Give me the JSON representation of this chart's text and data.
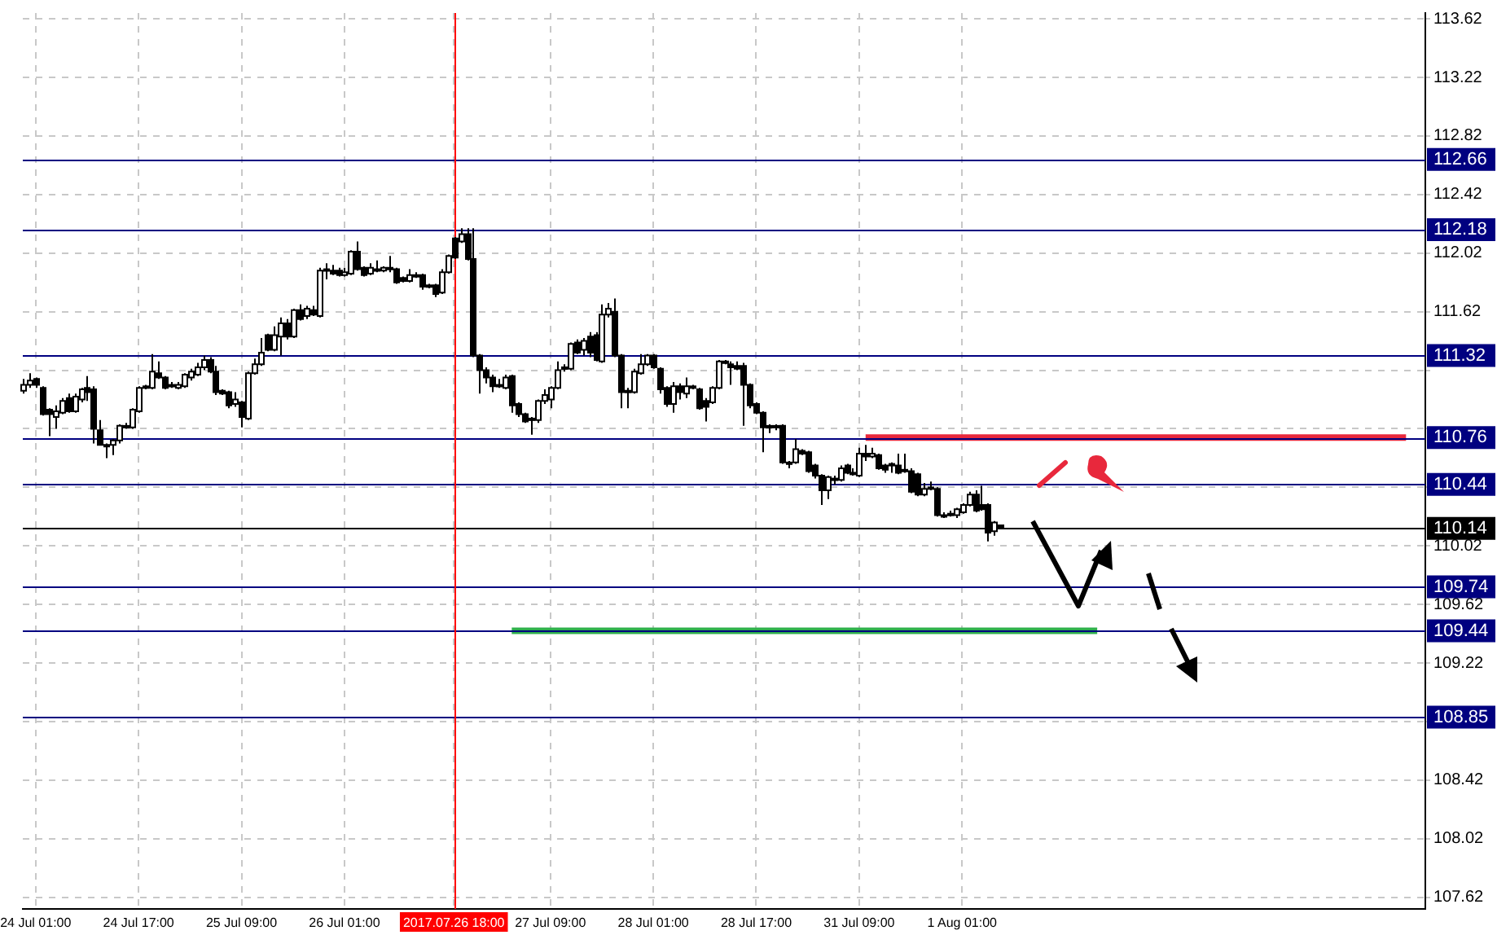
{
  "chart_data": {
    "type": "candlestick",
    "categories": [
      null,
      null,
      "24 Jul 01:00",
      null,
      null,
      null,
      null,
      null,
      null,
      null,
      null,
      null,
      null,
      null,
      null,
      null,
      null,
      null,
      "24 Jul 17:00",
      null,
      null,
      null,
      null,
      null,
      null,
      null,
      null,
      null,
      null,
      null,
      null,
      null,
      null,
      null,
      "25 Jul 09:00",
      null,
      null,
      null,
      null,
      null,
      null,
      null,
      null,
      null,
      null,
      null,
      null,
      null,
      null,
      null,
      "26 Jul 01:00",
      null,
      null,
      null,
      null,
      null,
      null,
      null,
      null,
      null,
      null,
      null,
      null,
      null,
      null,
      null,
      null,
      "2017.07.26 18:00",
      null,
      null,
      null,
      null,
      null,
      null,
      null,
      null,
      null,
      null,
      null,
      null,
      null,
      null,
      "27 Jul 09:00",
      null,
      null,
      null,
      null,
      null,
      null,
      null,
      null,
      null,
      null,
      null,
      null,
      null,
      null,
      null,
      "28 Jul 01:00",
      null,
      null,
      null,
      null,
      null,
      null,
      null,
      null,
      null,
      null,
      null,
      null,
      null,
      null,
      null,
      "28 Jul 17:00",
      null,
      null,
      null,
      null,
      null,
      null,
      null,
      null,
      null,
      null,
      null,
      null,
      null,
      null,
      null,
      "31 Jul 09:00",
      null,
      null,
      null,
      null,
      null,
      null,
      null,
      null,
      null,
      null,
      null,
      null,
      null,
      null,
      null,
      "1 Aug 01:00",
      null,
      null,
      null,
      null,
      null,
      null,
      null,
      null,
      null,
      null,
      null,
      null,
      null,
      null,
      null,
      null,
      null,
      null,
      null,
      null,
      null,
      null,
      null,
      null,
      null,
      null,
      null,
      null,
      null,
      null,
      null,
      null,
      null,
      null,
      null,
      null,
      null,
      null,
      null,
      null,
      null,
      null,
      null,
      null,
      null,
      null,
      null,
      null,
      null,
      null,
      null,
      null,
      null,
      null,
      null,
      null,
      null,
      null,
      null,
      null,
      null,
      null,
      null,
      null,
      null,
      null,
      null,
      null,
      null,
      null,
      null,
      null
    ],
    "ohlc": [
      [
        111.08,
        111.16,
        111.06,
        111.12
      ],
      [
        111.12,
        111.2,
        111.1,
        111.15
      ],
      [
        111.16,
        111.17,
        111.1,
        111.12
      ],
      [
        111.1,
        111.11,
        110.91,
        110.92
      ],
      [
        110.95,
        110.96,
        110.77,
        110.92
      ],
      [
        110.9,
        110.98,
        110.82,
        110.94
      ],
      [
        110.93,
        111.03,
        110.92,
        111.01
      ],
      [
        111.03,
        111.06,
        110.93,
        110.94
      ],
      [
        110.94,
        111.06,
        110.93,
        111.04
      ],
      [
        111.02,
        111.1,
        111.0,
        111.09
      ],
      [
        111.1,
        111.18,
        111.01,
        111.07
      ],
      [
        111.09,
        111.11,
        110.72,
        110.82
      ],
      [
        110.81,
        110.88,
        110.71,
        110.71
      ],
      [
        110.71,
        110.72,
        110.62,
        110.7
      ],
      [
        110.71,
        110.75,
        110.64,
        110.74
      ],
      [
        110.74,
        110.85,
        110.72,
        110.84
      ],
      [
        110.84,
        110.86,
        110.82,
        110.83
      ],
      [
        110.83,
        110.96,
        110.82,
        110.95
      ],
      [
        110.94,
        111.11,
        110.93,
        111.1
      ],
      [
        111.1,
        111.12,
        111.09,
        111.11
      ],
      [
        111.1,
        111.33,
        111.09,
        111.21
      ],
      [
        111.2,
        111.28,
        111.16,
        111.17
      ],
      [
        111.17,
        111.18,
        111.09,
        111.1
      ],
      [
        111.12,
        111.14,
        111.1,
        111.11
      ],
      [
        111.1,
        111.14,
        111.09,
        111.12
      ],
      [
        111.11,
        111.2,
        111.1,
        111.19
      ],
      [
        111.17,
        111.23,
        111.15,
        111.21
      ],
      [
        111.19,
        111.27,
        111.18,
        111.24
      ],
      [
        111.24,
        111.32,
        111.22,
        111.29
      ],
      [
        111.29,
        111.31,
        111.2,
        111.21
      ],
      [
        111.21,
        111.25,
        111.05,
        111.07
      ],
      [
        111.08,
        111.09,
        111.05,
        111.06
      ],
      [
        111.07,
        111.08,
        110.96,
        110.98
      ],
      [
        110.99,
        111.07,
        110.97,
        111.02
      ],
      [
        111.0,
        111.01,
        110.83,
        110.9
      ],
      [
        110.89,
        111.21,
        110.88,
        111.2
      ],
      [
        111.2,
        111.3,
        111.19,
        111.26
      ],
      [
        111.26,
        111.44,
        111.25,
        111.34
      ],
      [
        111.46,
        111.47,
        111.35,
        111.36
      ],
      [
        111.36,
        111.52,
        111.35,
        111.46
      ],
      [
        111.45,
        111.58,
        111.32,
        111.54
      ],
      [
        111.54,
        111.57,
        111.43,
        111.45
      ],
      [
        111.45,
        111.64,
        111.44,
        111.63
      ],
      [
        111.63,
        111.67,
        111.56,
        111.57
      ],
      [
        111.59,
        111.66,
        111.57,
        111.64
      ],
      [
        111.63,
        111.66,
        111.59,
        111.6
      ],
      [
        111.59,
        111.92,
        111.58,
        111.9
      ],
      [
        111.91,
        111.95,
        111.84,
        111.9
      ],
      [
        111.9,
        111.94,
        111.87,
        111.88
      ],
      [
        111.9,
        111.92,
        111.86,
        111.87
      ],
      [
        111.87,
        111.92,
        111.86,
        111.89
      ],
      [
        111.88,
        112.04,
        111.87,
        112.03
      ],
      [
        112.03,
        112.1,
        111.9,
        111.91
      ],
      [
        111.92,
        111.93,
        111.86,
        111.87
      ],
      [
        111.88,
        111.95,
        111.87,
        111.92
      ],
      [
        111.91,
        111.97,
        111.89,
        111.9
      ],
      [
        111.9,
        111.93,
        111.89,
        111.92
      ],
      [
        111.92,
        112.0,
        111.89,
        111.91
      ],
      [
        111.91,
        111.92,
        111.81,
        111.82
      ],
      [
        111.85,
        111.86,
        111.82,
        111.83
      ],
      [
        111.83,
        111.91,
        111.82,
        111.87
      ],
      [
        111.87,
        111.89,
        111.85,
        111.86
      ],
      [
        111.87,
        111.88,
        111.77,
        111.79
      ],
      [
        111.8,
        111.81,
        111.78,
        111.79
      ],
      [
        111.8,
        111.81,
        111.72,
        111.74
      ],
      [
        111.75,
        111.91,
        111.74,
        111.89
      ],
      [
        111.89,
        112.01,
        111.88,
        112.0
      ],
      [
        112.12,
        112.13,
        111.98,
        111.99
      ],
      [
        112.1,
        112.19,
        112.09,
        112.15
      ],
      [
        112.15,
        112.19,
        111.97,
        111.98
      ],
      [
        111.98,
        112.19,
        111.31,
        111.32
      ],
      [
        111.32,
        111.33,
        111.06,
        111.22
      ],
      [
        111.22,
        111.24,
        111.13,
        111.17
      ],
      [
        111.17,
        111.19,
        111.07,
        111.11
      ],
      [
        111.12,
        111.16,
        111.1,
        111.11
      ],
      [
        111.1,
        111.19,
        111.09,
        111.17
      ],
      [
        111.18,
        111.19,
        110.93,
        110.98
      ],
      [
        110.99,
        111.0,
        110.9,
        110.92
      ],
      [
        110.92,
        110.93,
        110.86,
        110.87
      ],
      [
        110.89,
        110.9,
        110.78,
        110.88
      ],
      [
        110.88,
        111.02,
        110.86,
        111.01
      ],
      [
        111.01,
        111.09,
        110.99,
        111.05
      ],
      [
        111.02,
        111.11,
        110.96,
        111.1
      ],
      [
        111.1,
        111.28,
        111.09,
        111.22
      ],
      [
        111.23,
        111.26,
        111.21,
        111.24
      ],
      [
        111.23,
        111.41,
        111.22,
        111.4
      ],
      [
        111.41,
        111.43,
        111.33,
        111.34
      ],
      [
        111.36,
        111.44,
        111.32,
        111.42
      ],
      [
        111.45,
        111.48,
        111.31,
        111.34
      ],
      [
        111.46,
        111.48,
        111.28,
        111.29
      ],
      [
        111.28,
        111.67,
        111.27,
        111.6
      ],
      [
        111.6,
        111.68,
        111.58,
        111.64
      ],
      [
        111.62,
        111.71,
        111.31,
        111.32
      ],
      [
        111.32,
        111.33,
        110.96,
        111.07
      ],
      [
        111.08,
        111.1,
        110.96,
        111.07
      ],
      [
        111.07,
        111.23,
        111.06,
        111.21
      ],
      [
        111.2,
        111.33,
        111.19,
        111.26
      ],
      [
        111.26,
        111.33,
        111.25,
        111.32
      ],
      [
        111.32,
        111.33,
        111.23,
        111.24
      ],
      [
        111.23,
        111.24,
        111.06,
        111.09
      ],
      [
        111.1,
        111.11,
        110.97,
        110.99
      ],
      [
        110.99,
        111.14,
        110.93,
        111.11
      ],
      [
        111.11,
        111.13,
        111.02,
        111.07
      ],
      [
        111.06,
        111.17,
        111.03,
        111.11
      ],
      [
        111.11,
        111.12,
        111.09,
        111.1
      ],
      [
        111.09,
        111.1,
        110.95,
        110.96
      ],
      [
        111.01,
        111.03,
        110.87,
        110.97
      ],
      [
        111.0,
        111.11,
        110.99,
        111.1
      ],
      [
        111.1,
        111.29,
        111.09,
        111.28
      ],
      [
        111.28,
        111.29,
        111.26,
        111.27
      ],
      [
        111.26,
        111.28,
        111.12,
        111.24
      ],
      [
        111.25,
        111.28,
        111.22,
        111.23
      ],
      [
        111.25,
        111.27,
        110.84,
        111.12
      ],
      [
        111.12,
        111.13,
        110.96,
        110.98
      ],
      [
        110.99,
        111.0,
        110.92,
        110.93
      ],
      [
        110.93,
        110.94,
        110.66,
        110.83
      ],
      [
        110.84,
        110.85,
        110.79,
        110.83
      ],
      [
        110.84,
        110.85,
        110.81,
        110.83
      ],
      [
        110.84,
        110.85,
        110.58,
        110.59
      ],
      [
        110.59,
        110.6,
        110.55,
        110.58
      ],
      [
        110.59,
        110.75,
        110.58,
        110.68
      ],
      [
        110.67,
        110.68,
        110.64,
        110.65
      ],
      [
        110.66,
        110.67,
        110.52,
        110.53
      ],
      [
        110.57,
        110.58,
        110.48,
        110.5
      ],
      [
        110.5,
        110.51,
        110.3,
        110.4
      ],
      [
        110.4,
        110.5,
        110.34,
        110.49
      ],
      [
        110.48,
        110.5,
        110.44,
        110.47
      ],
      [
        110.47,
        110.57,
        110.46,
        110.55
      ],
      [
        110.57,
        110.58,
        110.51,
        110.52
      ],
      [
        110.51,
        110.55,
        110.5,
        110.52
      ],
      [
        110.5,
        110.69,
        110.49,
        110.65
      ],
      [
        110.65,
        110.71,
        110.6,
        110.63
      ],
      [
        110.63,
        110.69,
        110.62,
        110.65
      ],
      [
        110.64,
        110.65,
        110.54,
        110.55
      ],
      [
        110.57,
        110.58,
        110.52,
        110.54
      ],
      [
        110.58,
        110.59,
        110.52,
        110.57
      ],
      [
        110.57,
        110.65,
        110.51,
        110.52
      ],
      [
        110.54,
        110.65,
        110.52,
        110.53
      ],
      [
        110.53,
        110.55,
        110.38,
        110.39
      ],
      [
        110.51,
        110.52,
        110.36,
        110.37
      ],
      [
        110.37,
        110.45,
        110.36,
        110.41
      ],
      [
        110.42,
        110.46,
        110.4,
        110.41
      ],
      [
        110.41,
        110.42,
        110.22,
        110.23
      ],
      [
        110.23,
        110.25,
        110.21,
        110.23
      ],
      [
        110.24,
        110.26,
        110.22,
        110.23
      ],
      [
        110.23,
        110.28,
        110.21,
        110.27
      ],
      [
        110.25,
        110.31,
        110.24,
        110.3
      ],
      [
        110.3,
        110.39,
        110.29,
        110.37
      ],
      [
        110.37,
        110.4,
        110.25,
        110.26
      ],
      [
        110.3,
        110.43,
        110.26,
        110.27
      ],
      [
        110.3,
        110.31,
        110.05,
        110.11
      ],
      [
        110.12,
        110.19,
        110.09,
        110.18
      ],
      [
        110.16,
        110.16,
        110.14,
        110.14
      ],
      null,
      null,
      null,
      null,
      null,
      null,
      null,
      null,
      null,
      null,
      null,
      null,
      null,
      null,
      null,
      null,
      null,
      null,
      null,
      null,
      null,
      null,
      null,
      null,
      null,
      null,
      null,
      null,
      null,
      null,
      null,
      null,
      null,
      null,
      null,
      null,
      null,
      null,
      null,
      null,
      null,
      null,
      null,
      null,
      null,
      null,
      null,
      null,
      null,
      null,
      null,
      null,
      null,
      null,
      null,
      null,
      null,
      null,
      null,
      null,
      null,
      null,
      null,
      null,
      null,
      null
    ],
    "series": [
      {
        "type": "line",
        "color": "#e8283c",
        "values": [
          null,
          null,
          null,
          null,
          null,
          null,
          null,
          null,
          null,
          null,
          null,
          null,
          null,
          null,
          null,
          null,
          null,
          null,
          null,
          null,
          null,
          null,
          null,
          null,
          null,
          null,
          null,
          null,
          null,
          null,
          null,
          null,
          null,
          null,
          null,
          null,
          null,
          null,
          null,
          null,
          null,
          null,
          null,
          null,
          null,
          null,
          null,
          null,
          null,
          null,
          null,
          null,
          null,
          null,
          null,
          null,
          null,
          null,
          null,
          null,
          null,
          null,
          null,
          null,
          null,
          null,
          null,
          null,
          null,
          null,
          null,
          null,
          null,
          null,
          null,
          null,
          null,
          null,
          null,
          null,
          null,
          null,
          null,
          null,
          null,
          null,
          null,
          null,
          null,
          null,
          null,
          null,
          null,
          null,
          null,
          null,
          null,
          null,
          null,
          null,
          null,
          null,
          null,
          null,
          null,
          null,
          null,
          null,
          null,
          null,
          null,
          null,
          null,
          null,
          null,
          null,
          null,
          null,
          null,
          null,
          null,
          null,
          null,
          null,
          null,
          null,
          null,
          null,
          null,
          null,
          null,
          110.76,
          110.76,
          110.76,
          110.76,
          110.76,
          110.76,
          110.76,
          110.76,
          110.76,
          110.76,
          110.76,
          110.76,
          110.76,
          110.76,
          110.76,
          110.76,
          110.76,
          110.76,
          110.76,
          110.76,
          110.76,
          110.76,
          110.76,
          110.76,
          110.76,
          110.76,
          110.76,
          110.76,
          110.76,
          110.76,
          110.76,
          110.76,
          110.76,
          110.76,
          110.76,
          110.76,
          110.76,
          110.76,
          110.76,
          110.76,
          110.76,
          110.76,
          110.76,
          110.76,
          110.76,
          110.76,
          110.76,
          110.76,
          110.76,
          110.76,
          110.76,
          110.76,
          110.76,
          110.76,
          110.76,
          110.76,
          110.76,
          110.76,
          110.76,
          110.76,
          110.76,
          110.76,
          110.76,
          110.76,
          110.76,
          110.76,
          110.76,
          110.76,
          110.76,
          110.76,
          110.76,
          110.76,
          110.76,
          110.76,
          110.76,
          110.76,
          110.76,
          110.76,
          110.76,
          110.76,
          110.76,
          110.76,
          110.76,
          110.76,
          110.76,
          null,
          null,
          null
        ]
      },
      {
        "type": "line",
        "color": "#2fb04c",
        "values": [
          null,
          null,
          null,
          null,
          null,
          null,
          null,
          null,
          null,
          null,
          null,
          null,
          null,
          null,
          null,
          null,
          null,
          null,
          null,
          null,
          null,
          null,
          null,
          null,
          null,
          null,
          null,
          null,
          null,
          null,
          null,
          null,
          null,
          null,
          null,
          null,
          null,
          null,
          null,
          null,
          null,
          null,
          null,
          null,
          null,
          null,
          null,
          null,
          null,
          null,
          null,
          null,
          null,
          null,
          null,
          null,
          null,
          null,
          null,
          null,
          null,
          null,
          null,
          null,
          null,
          null,
          null,
          null,
          null,
          null,
          null,
          null,
          null,
          null,
          null,
          null,
          109.44,
          109.44,
          109.44,
          109.44,
          109.44,
          109.44,
          109.44,
          109.44,
          109.44,
          109.44,
          109.44,
          109.44,
          109.44,
          109.44,
          109.44,
          109.44,
          109.44,
          109.44,
          109.44,
          109.44,
          109.44,
          109.44,
          109.44,
          109.44,
          109.44,
          109.44,
          109.44,
          109.44,
          109.44,
          109.44,
          109.44,
          109.44,
          109.44,
          109.44,
          109.44,
          109.44,
          109.44,
          109.44,
          109.44,
          109.44,
          109.44,
          109.44,
          109.44,
          109.44,
          109.44,
          109.44,
          109.44,
          109.44,
          109.44,
          109.44,
          109.44,
          109.44,
          109.44,
          109.44,
          109.44,
          109.44,
          109.44,
          109.44,
          109.44,
          109.44,
          109.44,
          109.44,
          109.44,
          109.44,
          109.44,
          109.44,
          109.44,
          109.44,
          109.44,
          109.44,
          109.44,
          109.44,
          109.44,
          109.44,
          109.44,
          109.44,
          109.44,
          109.44,
          109.44,
          109.44,
          109.44,
          109.44,
          109.44,
          109.44,
          109.44,
          109.44,
          109.44,
          109.44,
          109.44,
          109.44,
          109.44,
          109.44,
          null,
          null,
          null,
          null,
          null,
          null,
          null,
          null,
          null,
          null,
          null,
          null,
          null,
          null,
          null,
          null,
          null,
          null,
          null,
          null,
          null,
          null,
          null,
          null,
          null,
          null,
          null,
          null,
          null,
          null,
          null,
          null,
          null,
          null,
          null,
          null,
          null,
          null,
          null,
          null,
          null,
          null,
          null,
          null,
          null,
          null,
          null,
          null,
          null,
          null,
          null
        ]
      }
    ],
    "ylim": [
      107.54,
      113.66
    ],
    "yticks": [
      113.62,
      113.22,
      112.82,
      112.42,
      112.02,
      111.62,
      {
        "value": 111.22,
        "label": null
      },
      {
        "value": 110.82,
        "label": null
      },
      {
        "value": 110.42,
        "label": null
      },
      110.02,
      109.62,
      109.22,
      {
        "value": 108.82,
        "label": null
      },
      108.42,
      108.02,
      107.62
    ],
    "grid": true,
    "ref_lines": [
      {
        "axis": "y",
        "value": 112.66,
        "label": "112.66",
        "color": "#000080"
      },
      {
        "axis": "y",
        "value": 112.18,
        "label": "112.18",
        "color": "#000080"
      },
      {
        "axis": "y",
        "value": 111.32,
        "label": "111.32",
        "color": "#000080"
      },
      {
        "axis": "y",
        "value": 110.76,
        "label": "110.76",
        "color": "#000080"
      },
      {
        "axis": "y",
        "value": 110.44,
        "label": "110.44",
        "color": "#000080"
      },
      {
        "axis": "y",
        "value": 110.14,
        "label": "110.14",
        "color": "#000000"
      },
      {
        "axis": "y",
        "value": 109.74,
        "label": "109.74",
        "color": "#000080"
      },
      {
        "axis": "y",
        "value": 109.44,
        "label": "109.44",
        "color": "#000080"
      },
      {
        "axis": "y",
        "value": 108.85,
        "label": "108.85",
        "color": "#000080"
      },
      {
        "axis": "x",
        "value": "2017.07.26 18:00",
        "color": "#ff0000"
      }
    ]
  }
}
